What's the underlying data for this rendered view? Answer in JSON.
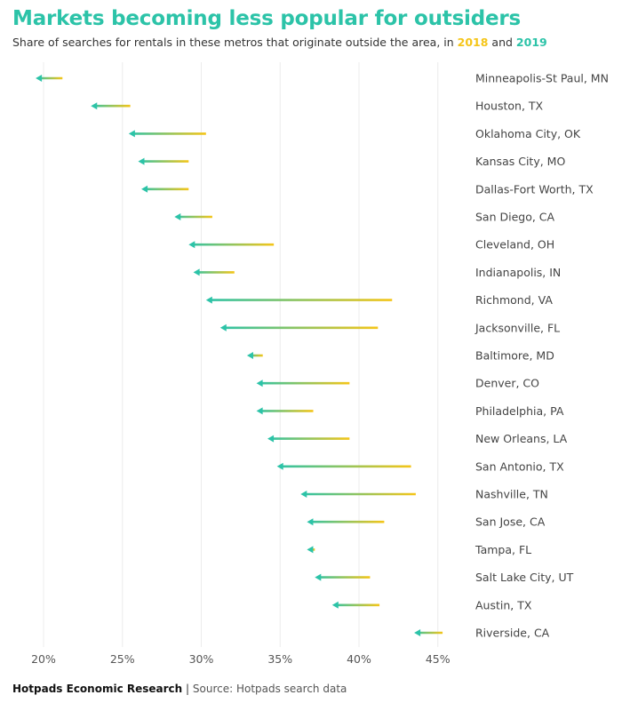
{
  "title": "Markets becoming less popular for outsiders",
  "subtitle": {
    "prefix": "Share of searches for rentals in these metros that originate outside the area, in ",
    "year1": "2018",
    "and": " and ",
    "year2": "2019"
  },
  "footer": {
    "org": "Hotpads Economic Research",
    "separator": " | ",
    "source": "Source: Hotpads search data"
  },
  "colors": {
    "y2018": "#f5c518",
    "y2019": "#2cc3a8",
    "grid": "#ececec"
  },
  "chart_data": {
    "type": "arrow-dumbbell",
    "title": "Markets becoming less popular for outsiders",
    "subtitle": "Share of searches for rentals in these metros that originate outside the area, in 2018 and 2019",
    "unit": "%",
    "xlim": [
      19,
      46
    ],
    "xticks": [
      20,
      25,
      30,
      35,
      40,
      45
    ],
    "xtick_labels": [
      "20%",
      "25%",
      "30%",
      "35%",
      "40%",
      "45%"
    ],
    "grid": "vertical",
    "series": [
      {
        "name": "2018",
        "color": "#f5c518"
      },
      {
        "name": "2019",
        "color": "#2cc3a8"
      }
    ],
    "categories": [
      "Minneapolis-St Paul, MN",
      "Houston, TX",
      "Oklahoma City, OK",
      "Kansas City, MO",
      "Dallas-Fort Worth, TX",
      "San Diego, CA",
      "Cleveland, OH",
      "Indianapolis, IN",
      "Richmond, VA",
      "Jacksonville, FL",
      "Baltimore, MD",
      "Denver, CO",
      "Philadelphia, PA",
      "New Orleans, LA",
      "San Antonio, TX",
      "Nashville, TN",
      "San Jose, CA",
      "Tampa, FL",
      "Salt Lake City, UT",
      "Austin, TX",
      "Riverside, CA"
    ],
    "values_2018": [
      21.2,
      25.5,
      30.3,
      29.2,
      29.2,
      30.7,
      34.6,
      32.1,
      42.1,
      41.2,
      33.9,
      39.4,
      37.1,
      39.4,
      43.3,
      43.6,
      41.6,
      37.2,
      40.7,
      41.3,
      45.3
    ],
    "values_2019": [
      19.5,
      23.0,
      25.4,
      26.0,
      26.2,
      28.3,
      29.2,
      29.5,
      30.3,
      31.2,
      32.9,
      33.5,
      33.5,
      34.2,
      34.8,
      36.3,
      36.7,
      36.7,
      37.2,
      38.3,
      43.5
    ]
  }
}
